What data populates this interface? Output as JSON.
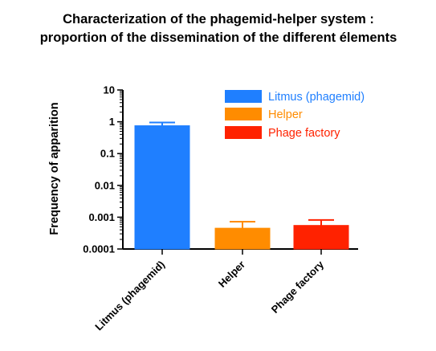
{
  "chart_data": {
    "type": "bar",
    "title_lines": [
      "Characterization of the phagemid-helper system :",
      "proportion of the dissemination of the different élements"
    ],
    "ylabel": "Frequency of apparition",
    "xlabel": "",
    "yscale": "log",
    "ylim": [
      0.0001,
      10
    ],
    "yticks": [
      10,
      1,
      0.1,
      0.01,
      0.001,
      0.0001
    ],
    "ytick_labels": [
      "10",
      "1",
      "0.1",
      "0.01",
      "0.001",
      "0.0001"
    ],
    "categories": [
      "Litmus (phagemid)",
      "Helper",
      "Phage factory"
    ],
    "values": [
      0.75,
      0.00045,
      0.00055
    ],
    "error_upper": [
      0.95,
      0.00072,
      0.00082
    ],
    "colors": [
      "#1f7fff",
      "#ff8c00",
      "#ff2200"
    ],
    "legend_placement": "top-right",
    "legend": [
      "Litmus (phagemid)",
      "Helper",
      "Phage factory"
    ]
  }
}
